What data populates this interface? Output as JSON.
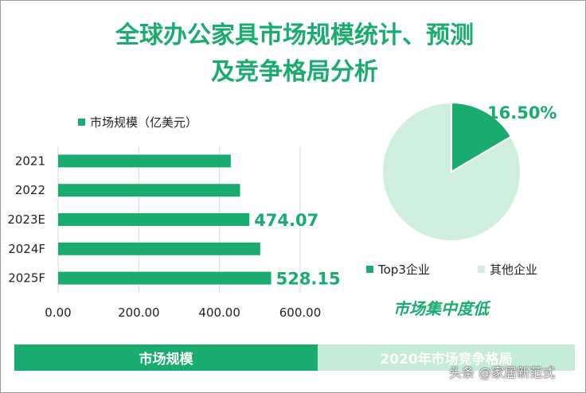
{
  "title_line1": "全球办公家具市场规模统计、预测",
  "title_line2": "及竞争格局分析",
  "colors": {
    "accent": "#1aab6e",
    "light": "#cfeedd"
  },
  "chart_data": [
    {
      "type": "bar",
      "orientation": "horizontal",
      "legend": "市场规模（亿美元）",
      "categories": [
        "2021",
        "2022",
        "2023E",
        "2024F",
        "2025F"
      ],
      "values": [
        428,
        451,
        474.07,
        501,
        528.15
      ],
      "data_labels": [
        "",
        "",
        "474.07",
        "",
        "528.15"
      ],
      "xlim": [
        0,
        600
      ],
      "xticks": [
        "0.00",
        "200.00",
        "400.00",
        "600.00"
      ],
      "grid": true
    },
    {
      "type": "pie",
      "labels": [
        "Top3企业",
        "其他企业"
      ],
      "values": [
        16.5,
        83.5
      ],
      "data_label": "16.50%",
      "caption": "市场集中度低"
    }
  ],
  "footer": {
    "left": "市场规模",
    "right": "2020年市场竞争格局"
  },
  "credit": "头条 @家居新范式"
}
